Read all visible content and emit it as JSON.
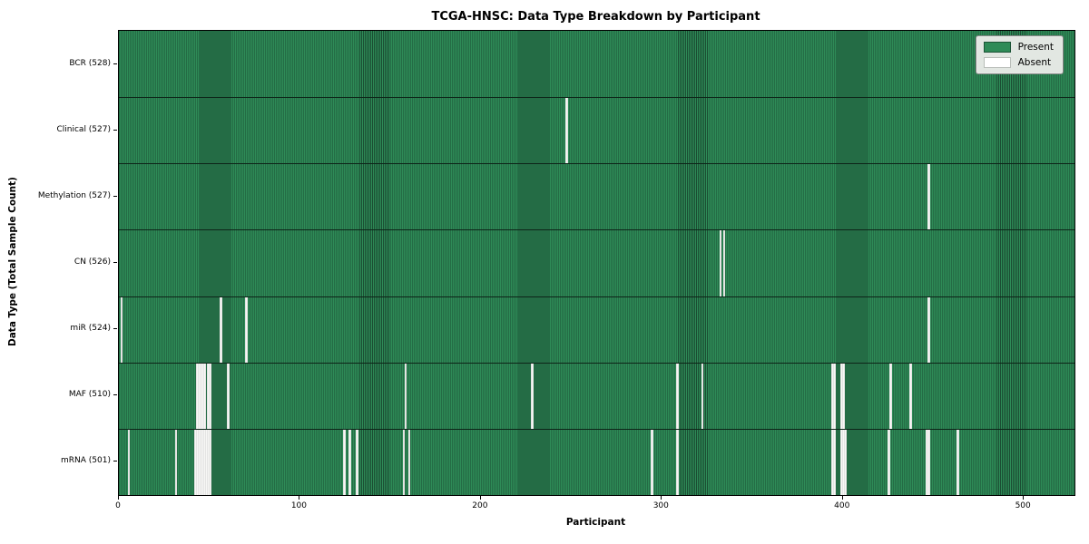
{
  "title": "TCGA-HNSC: Data Type Breakdown by Participant",
  "legend": {
    "present_label": "Present",
    "absent_label": "Absent"
  },
  "colors": {
    "present": "#2E8B57",
    "present_stripe_edge": "#1b4e33",
    "absent": "#f7f7f5",
    "axis": "#000000"
  },
  "chart_data": {
    "type": "heatmap",
    "title": "TCGA-HNSC: Data Type Breakdown by Participant",
    "xlabel": "Participant",
    "ylabel": "Data Type (Total Sample Count)",
    "x_range": [
      0,
      528
    ],
    "x_ticks": [
      0,
      100,
      200,
      300,
      400,
      500
    ],
    "grid": false,
    "legend_position": "upper right",
    "legend_entries": [
      "Present",
      "Absent"
    ],
    "rows": [
      {
        "name": "BCR",
        "label": "BCR (528)",
        "count": 528,
        "absent": []
      },
      {
        "name": "Clinical",
        "label": "Clinical (527)",
        "count": 527,
        "absent": [
          247
        ]
      },
      {
        "name": "Methylation",
        "label": "Methylation (527)",
        "count": 527,
        "absent": [
          447
        ]
      },
      {
        "name": "CN",
        "label": "CN (526)",
        "count": 526,
        "absent": [
          332,
          334
        ]
      },
      {
        "name": "miR",
        "label": "miR (524)",
        "count": 524,
        "absent": [
          1,
          56,
          70,
          447
        ]
      },
      {
        "name": "MAF",
        "label": "MAF (510)",
        "count": 510,
        "absent": [
          43,
          44,
          45,
          46,
          47,
          49,
          50,
          60,
          158,
          228,
          308,
          322,
          394,
          395,
          399,
          400,
          426,
          437
        ]
      },
      {
        "name": "mRNA",
        "label": "mRNA (501)",
        "count": 501,
        "absent": [
          5,
          31,
          42,
          43,
          44,
          45,
          46,
          47,
          48,
          49,
          50,
          124,
          127,
          131,
          157,
          160,
          294,
          308,
          394,
          395,
          399,
          400,
          401,
          425,
          446,
          447,
          463
        ]
      }
    ]
  }
}
